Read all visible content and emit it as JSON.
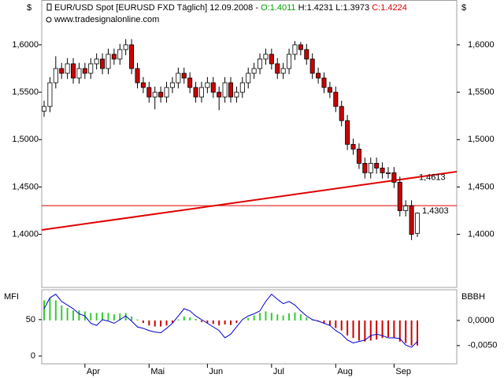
{
  "chart_data": [
    {
      "type": "candlestick",
      "header": {
        "instrument": "EUR/USD Spot [EURUSD FXD  Täglich] 12.09.2008 -",
        "open_label": "O:1.4011",
        "high_low_label": "H:1.4231 L:1.3973",
        "close_label": "C:1.4224"
      },
      "watermark": "www.tradesignalonline.com",
      "y_axis_label": "$",
      "categories": [
        null,
        null,
        null,
        null,
        null,
        null,
        null,
        "Apr",
        null,
        null,
        null,
        null,
        null,
        null,
        null,
        null,
        null,
        null,
        "Mai",
        null,
        null,
        null,
        null,
        null,
        null,
        null,
        null,
        null,
        "Jun",
        null,
        null,
        null,
        null,
        null,
        null,
        null,
        null,
        null,
        null,
        "Jul",
        null,
        null,
        null,
        null,
        null,
        null,
        null,
        null,
        null,
        null,
        "Aug",
        null,
        null,
        null,
        null,
        null,
        null,
        null,
        null,
        null,
        "Sep",
        null,
        null,
        null,
        null
      ],
      "open": [
        1.53,
        1.535,
        1.56,
        1.575,
        1.57,
        1.58,
        1.565,
        1.575,
        1.57,
        1.58,
        1.585,
        1.575,
        1.59,
        1.585,
        1.595,
        1.6,
        1.575,
        1.56,
        1.555,
        1.545,
        1.55,
        1.545,
        1.555,
        1.56,
        1.57,
        1.565,
        1.555,
        1.545,
        1.555,
        1.56,
        1.55,
        1.545,
        1.56,
        1.545,
        1.55,
        1.56,
        1.57,
        1.575,
        1.585,
        1.59,
        1.58,
        1.57,
        1.575,
        1.59,
        1.6,
        1.595,
        1.585,
        1.57,
        1.565,
        1.555,
        1.55,
        1.535,
        1.52,
        1.495,
        1.49,
        1.475,
        1.465,
        1.475,
        1.47,
        1.465,
        1.465,
        1.455,
        1.425,
        1.43,
        1.4011
      ],
      "high": [
        1.541,
        1.566,
        1.588,
        1.581,
        1.586,
        1.586,
        1.581,
        1.581,
        1.586,
        1.591,
        1.591,
        1.596,
        1.596,
        1.601,
        1.606,
        1.606,
        1.581,
        1.566,
        1.561,
        1.556,
        1.556,
        1.561,
        1.566,
        1.576,
        1.576,
        1.571,
        1.561,
        1.561,
        1.566,
        1.566,
        1.556,
        1.566,
        1.566,
        1.556,
        1.566,
        1.576,
        1.581,
        1.591,
        1.596,
        1.596,
        1.586,
        1.581,
        1.596,
        1.604,
        1.603,
        1.601,
        1.591,
        1.576,
        1.571,
        1.561,
        1.556,
        1.541,
        1.526,
        1.501,
        1.496,
        1.481,
        1.481,
        1.481,
        1.476,
        1.471,
        1.471,
        1.461,
        1.436,
        1.436,
        1.4231
      ],
      "low": [
        1.524,
        1.529,
        1.554,
        1.564,
        1.564,
        1.559,
        1.559,
        1.564,
        1.564,
        1.574,
        1.569,
        1.569,
        1.579,
        1.579,
        1.589,
        1.569,
        1.554,
        1.549,
        1.539,
        1.532,
        1.539,
        1.539,
        1.549,
        1.554,
        1.559,
        1.549,
        1.539,
        1.539,
        1.549,
        1.544,
        1.531,
        1.539,
        1.539,
        1.539,
        1.544,
        1.554,
        1.564,
        1.569,
        1.579,
        1.574,
        1.564,
        1.564,
        1.569,
        1.584,
        1.589,
        1.579,
        1.564,
        1.559,
        1.549,
        1.544,
        1.529,
        1.514,
        1.489,
        1.484,
        1.469,
        1.459,
        1.459,
        1.464,
        1.459,
        1.459,
        1.449,
        1.419,
        1.419,
        1.394,
        1.3973
      ],
      "close": [
        1.535,
        1.56,
        1.575,
        1.57,
        1.58,
        1.565,
        1.575,
        1.57,
        1.58,
        1.585,
        1.575,
        1.59,
        1.585,
        1.595,
        1.6,
        1.575,
        1.56,
        1.555,
        1.545,
        1.55,
        1.545,
        1.555,
        1.56,
        1.57,
        1.565,
        1.555,
        1.545,
        1.555,
        1.56,
        1.55,
        1.545,
        1.56,
        1.545,
        1.55,
        1.56,
        1.57,
        1.575,
        1.585,
        1.59,
        1.58,
        1.57,
        1.575,
        1.59,
        1.6,
        1.595,
        1.585,
        1.57,
        1.565,
        1.555,
        1.55,
        1.535,
        1.52,
        1.495,
        1.49,
        1.475,
        1.465,
        1.475,
        1.47,
        1.465,
        1.465,
        1.455,
        1.425,
        1.43,
        1.4,
        1.4224
      ],
      "up_color": "#ffffff",
      "down_color": "#cc0000",
      "ylim": [
        1.344,
        1.639
      ],
      "yticks": [
        {
          "value": 1.4,
          "label": "1,4000"
        },
        {
          "value": 1.45,
          "label": "1,4500"
        },
        {
          "value": 1.5,
          "label": "1,5000"
        },
        {
          "value": 1.55,
          "label": "1,5500"
        },
        {
          "value": 1.6,
          "label": "1,6000"
        }
      ],
      "horizontal_line": {
        "value": 1.4303,
        "label": "1,4303",
        "color": "#e00000"
      },
      "trendline": {
        "values": [
          1.4047,
          1.4662
        ],
        "marker": {
          "value": 1.4613,
          "label": "1,4613"
        },
        "color": "#e00000"
      }
    },
    {
      "type": "combo",
      "series": [
        {
          "name": "MFI",
          "color": "#0000cc",
          "axis": "y",
          "values": [
            65,
            80,
            85,
            75,
            70,
            65,
            58,
            55,
            45,
            42,
            50,
            48,
            45,
            50,
            55,
            48,
            40,
            38,
            35,
            33,
            32,
            38,
            45,
            55,
            65,
            62,
            55,
            50,
            45,
            40,
            35,
            25,
            30,
            40,
            50,
            55,
            58,
            62,
            75,
            85,
            78,
            72,
            75,
            70,
            62,
            55,
            50,
            48,
            45,
            42,
            35,
            30,
            22,
            18,
            20,
            22,
            28,
            30,
            28,
            25,
            25,
            24,
            15,
            12,
            20
          ]
        },
        {
          "name": "BBBH",
          "positive_color": "#33cc33",
          "negative_color": "#cc0000",
          "axis": "y2",
          "values": [
            0.004,
            0.0045,
            0.004,
            0.003,
            0.0025,
            0.002,
            0.002,
            0.0018,
            0.0015,
            0.0015,
            0.0016,
            0.0015,
            0.0012,
            0.0014,
            0.0015,
            0.0008,
            0.0002,
            -0.0005,
            -0.001,
            -0.0012,
            -0.0012,
            -0.001,
            -0.0005,
            0.0002,
            0.0008,
            0.0006,
            0.0003,
            -0.0003,
            -0.0005,
            -0.0007,
            -0.001,
            -0.0008,
            -0.0009,
            -0.0005,
            0,
            0.0005,
            0.001,
            0.0015,
            0.0018,
            0.0015,
            0.0012,
            0.001,
            0.0014,
            0.0016,
            0.0012,
            0.0006,
            0.0002,
            -0.0002,
            -0.0006,
            -0.001,
            -0.0015,
            -0.002,
            -0.003,
            -0.0035,
            -0.004,
            -0.0042,
            -0.004,
            -0.0038,
            -0.0035,
            -0.0033,
            -0.0035,
            -0.0042,
            -0.0045,
            -0.005,
            -0.005
          ]
        }
      ],
      "ylim": [
        -14,
        91
      ],
      "yticks": [
        0,
        50
      ],
      "y2lim": [
        -0.0091,
        0.0061
      ],
      "y2ticks": [
        {
          "value": 0,
          "label": "0,0000"
        },
        {
          "value": -0.005,
          "label": "-0,0050"
        }
      ]
    }
  ]
}
